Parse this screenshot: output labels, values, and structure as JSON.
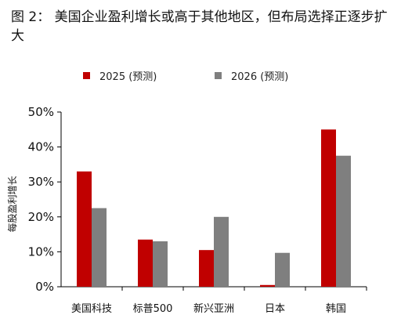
{
  "title": "图 2： 美国企业盈利增长或高于其他地区，但布局选择正逐步扩大",
  "legend": [
    {
      "label": "2025 (预测)",
      "color": "#C00000"
    },
    {
      "label": "2026 (预测)",
      "color": "#7F7F7F"
    }
  ],
  "chart_data": {
    "type": "bar",
    "categories": [
      "美国科技",
      "标普500",
      "新兴亚洲",
      "日本",
      "韩国"
    ],
    "series": [
      {
        "name": "2025 (预测)",
        "values": [
          33,
          13.5,
          10.5,
          0.5,
          45
        ],
        "color": "#C00000"
      },
      {
        "name": "2026 (预测)",
        "values": [
          22.5,
          13,
          20,
          9.7,
          37.5
        ],
        "color": "#7F7F7F"
      }
    ],
    "ylabel": "每股盈利增长",
    "ylim": [
      0,
      50
    ],
    "yticks": [
      0,
      10,
      20,
      30,
      40,
      50
    ],
    "ytick_labels": [
      "0%",
      "10%",
      "20%",
      "30%",
      "40%",
      "50%"
    ],
    "grid": false,
    "legend_position": "top"
  }
}
